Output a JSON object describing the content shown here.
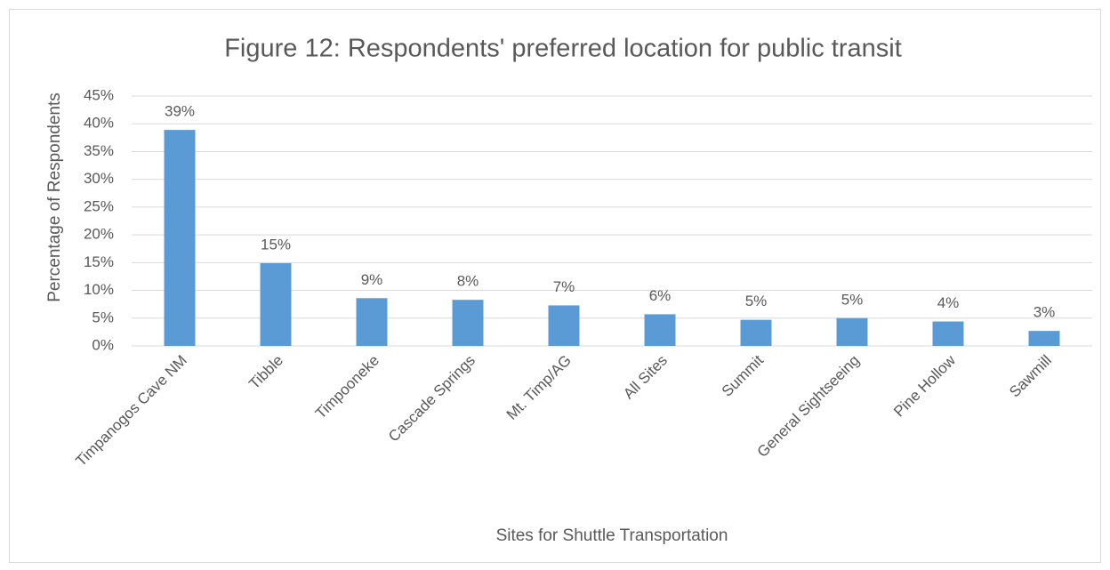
{
  "chart_data": {
    "type": "bar",
    "title": "Figure 12: Respondents' preferred location for public transit",
    "x_label": "Sites for Shuttle Transportation",
    "y_label": "Percentage of Respondents",
    "categories": [
      "Timpanogos Cave NM",
      "Tibble",
      "Timpooneke",
      "Cascade Springs",
      "Mt. Timp/AG",
      "All Sites",
      "Summit",
      "General Sightseeing",
      "Pine Hollow",
      "Sawmill"
    ],
    "values": [
      38.9,
      14.9,
      8.6,
      8.3,
      7.3,
      5.7,
      4.7,
      5.0,
      4.4,
      2.7
    ],
    "value_labels": [
      "39%",
      "15%",
      "9%",
      "8%",
      "7%",
      "6%",
      "5%",
      "5%",
      "4%",
      "3%"
    ],
    "color": "#5b9bd5",
    "ylim": [
      0,
      45
    ],
    "yticks": [
      {
        "value": 0,
        "label": "0%"
      },
      {
        "value": 5,
        "label": "5%"
      },
      {
        "value": 10,
        "label": "10%"
      },
      {
        "value": 15,
        "label": "15%"
      },
      {
        "value": 20,
        "label": "20%"
      },
      {
        "value": 25,
        "label": "25%"
      },
      {
        "value": 30,
        "label": "30%"
      },
      {
        "value": 35,
        "label": "35%"
      },
      {
        "value": 40,
        "label": "40%"
      },
      {
        "value": 45,
        "label": "45%"
      }
    ],
    "grid": true
  }
}
